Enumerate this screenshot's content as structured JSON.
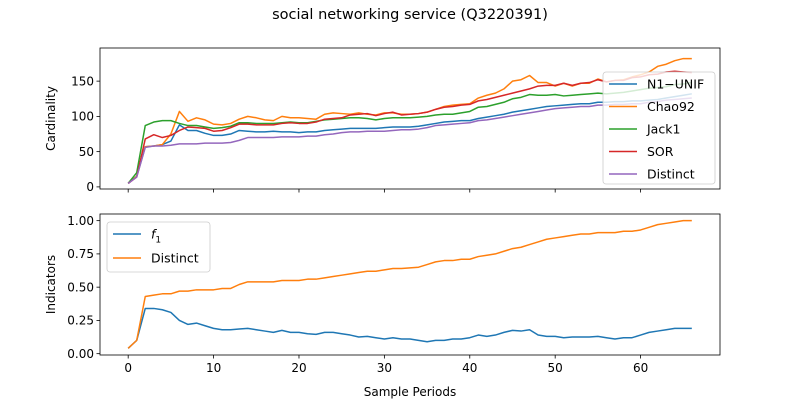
{
  "figure": {
    "title": "social networking service (Q3220391)",
    "xlabel": "Sample Periods"
  },
  "chart_data": [
    {
      "type": "line",
      "ylabel": "Cardinality",
      "xlim": [
        -3.3,
        69.3
      ],
      "ylim": [
        -3,
        197
      ],
      "xticks": [
        0,
        10,
        20,
        30,
        40,
        50,
        60
      ],
      "yticks": [
        0,
        50,
        100,
        150
      ],
      "show_xtick_labels": false,
      "grid": false,
      "legend_position": "right",
      "x": [
        0,
        1,
        2,
        3,
        4,
        5,
        6,
        7,
        8,
        9,
        10,
        11,
        12,
        13,
        14,
        15,
        16,
        17,
        18,
        19,
        20,
        21,
        22,
        23,
        24,
        25,
        26,
        27,
        28,
        29,
        30,
        31,
        32,
        33,
        34,
        35,
        36,
        37,
        38,
        39,
        40,
        41,
        42,
        43,
        44,
        45,
        46,
        47,
        48,
        49,
        50,
        51,
        52,
        53,
        54,
        55,
        56,
        57,
        58,
        59,
        60,
        61,
        62,
        63,
        64,
        65,
        66
      ],
      "series": [
        {
          "name": "N1−UNIF",
          "color": "#1f77b4",
          "values": [
            5,
            15,
            57,
            58,
            60,
            65,
            88,
            80,
            80,
            76,
            73,
            73,
            75,
            80,
            79,
            78,
            78,
            79,
            78,
            78,
            77,
            78,
            78,
            80,
            81,
            82,
            83,
            83,
            83,
            83,
            84,
            85,
            85,
            85,
            86,
            88,
            90,
            92,
            93,
            94,
            94,
            97,
            99,
            101,
            103,
            106,
            108,
            110,
            112,
            114,
            115,
            116,
            117,
            118,
            118,
            120,
            120,
            121,
            121,
            122,
            122,
            123,
            124,
            126,
            128,
            130,
            132
          ]
        },
        {
          "name": "Chao92",
          "color": "#ff7f0e",
          "values": [
            5,
            15,
            57,
            58,
            60,
            75,
            107,
            93,
            98,
            95,
            89,
            88,
            90,
            96,
            100,
            98,
            95,
            94,
            100,
            98,
            98,
            97,
            96,
            103,
            105,
            104,
            103,
            105,
            103,
            102,
            105,
            105,
            103,
            103,
            104,
            106,
            110,
            114,
            116,
            117,
            118,
            126,
            130,
            133,
            139,
            150,
            152,
            158,
            148,
            148,
            143,
            147,
            143,
            147,
            147,
            153,
            149,
            151,
            152,
            156,
            159,
            163,
            171,
            174,
            179,
            182,
            182
          ]
        },
        {
          "name": "Jack1",
          "color": "#2ca02c",
          "values": [
            5,
            20,
            87,
            92,
            94,
            94,
            90,
            87,
            87,
            85,
            83,
            84,
            86,
            91,
            91,
            90,
            90,
            90,
            91,
            92,
            91,
            91,
            93,
            95,
            96,
            97,
            98,
            98,
            97,
            95,
            97,
            98,
            98,
            98,
            99,
            100,
            102,
            103,
            103,
            105,
            107,
            113,
            114,
            117,
            120,
            125,
            127,
            131,
            130,
            130,
            131,
            129,
            130,
            131,
            132,
            133,
            132,
            133,
            134,
            136,
            138,
            140,
            141,
            142,
            145,
            146,
            148
          ]
        },
        {
          "name": "SOR",
          "color": "#d62728",
          "values": [
            5,
            14,
            68,
            74,
            70,
            73,
            80,
            85,
            84,
            83,
            79,
            80,
            84,
            89,
            89,
            88,
            88,
            88,
            90,
            91,
            90,
            90,
            92,
            96,
            97,
            98,
            102,
            103,
            104,
            101,
            104,
            106,
            102,
            103,
            104,
            106,
            110,
            113,
            114,
            116,
            117,
            122,
            124,
            127,
            130,
            133,
            136,
            139,
            143,
            144,
            144,
            147,
            144,
            147,
            148,
            152,
            149,
            151,
            151,
            155,
            156,
            159,
            160,
            163,
            164,
            163,
            162
          ]
        },
        {
          "name": "Distinct",
          "color": "#9467bd",
          "values": [
            5,
            14,
            56,
            58,
            58,
            59,
            61,
            61,
            61,
            62,
            62,
            62,
            63,
            66,
            70,
            70,
            70,
            70,
            71,
            71,
            71,
            72,
            72,
            74,
            75,
            77,
            78,
            78,
            79,
            79,
            79,
            80,
            81,
            81,
            82,
            84,
            87,
            88,
            89,
            90,
            91,
            94,
            95,
            97,
            99,
            101,
            103,
            105,
            107,
            109,
            111,
            112,
            113,
            114,
            114,
            116,
            116,
            117,
            117,
            118,
            118,
            120,
            121,
            123,
            124,
            125,
            126
          ]
        }
      ]
    },
    {
      "type": "line",
      "ylabel": "Indicators",
      "xlim": [
        -3.3,
        69.3
      ],
      "ylim": [
        -0.01,
        1.05
      ],
      "xticks": [
        0,
        10,
        20,
        30,
        40,
        50,
        60
      ],
      "yticks": [
        0.0,
        0.25,
        0.5,
        0.75,
        1.0
      ],
      "ytick_labels": [
        "0.00",
        "0.25",
        "0.50",
        "0.75",
        "1.00"
      ],
      "show_xtick_labels": true,
      "grid": false,
      "legend_position": "upper-left",
      "x": [
        0,
        1,
        2,
        3,
        4,
        5,
        6,
        7,
        8,
        9,
        10,
        11,
        12,
        13,
        14,
        15,
        16,
        17,
        18,
        19,
        20,
        21,
        22,
        23,
        24,
        25,
        26,
        27,
        28,
        29,
        30,
        31,
        32,
        33,
        34,
        35,
        36,
        37,
        38,
        39,
        40,
        41,
        42,
        43,
        44,
        45,
        46,
        47,
        48,
        49,
        50,
        51,
        52,
        53,
        54,
        55,
        56,
        57,
        58,
        59,
        60,
        61,
        62,
        63,
        64,
        65,
        66
      ],
      "series": [
        {
          "name": "f1",
          "label_main": "f",
          "label_sub": "1",
          "color": "#1f77b4",
          "values": [
            0.04,
            0.1,
            0.34,
            0.34,
            0.33,
            0.31,
            0.25,
            0.22,
            0.23,
            0.21,
            0.19,
            0.18,
            0.18,
            0.185,
            0.19,
            0.18,
            0.17,
            0.16,
            0.175,
            0.16,
            0.16,
            0.15,
            0.145,
            0.16,
            0.16,
            0.15,
            0.14,
            0.125,
            0.13,
            0.12,
            0.11,
            0.12,
            0.11,
            0.11,
            0.1,
            0.09,
            0.1,
            0.1,
            0.11,
            0.11,
            0.12,
            0.14,
            0.13,
            0.14,
            0.16,
            0.175,
            0.17,
            0.18,
            0.14,
            0.13,
            0.13,
            0.12,
            0.125,
            0.125,
            0.125,
            0.13,
            0.12,
            0.11,
            0.12,
            0.12,
            0.14,
            0.16,
            0.17,
            0.18,
            0.19,
            0.19,
            0.19
          ]
        },
        {
          "name": "Distinct",
          "color": "#ff7f0e",
          "values": [
            0.04,
            0.1,
            0.43,
            0.44,
            0.45,
            0.45,
            0.47,
            0.47,
            0.48,
            0.48,
            0.48,
            0.49,
            0.49,
            0.52,
            0.54,
            0.54,
            0.54,
            0.54,
            0.55,
            0.55,
            0.55,
            0.56,
            0.56,
            0.57,
            0.58,
            0.59,
            0.6,
            0.61,
            0.62,
            0.62,
            0.63,
            0.64,
            0.64,
            0.645,
            0.65,
            0.67,
            0.69,
            0.7,
            0.7,
            0.71,
            0.71,
            0.73,
            0.74,
            0.75,
            0.77,
            0.79,
            0.8,
            0.82,
            0.84,
            0.86,
            0.87,
            0.88,
            0.89,
            0.9,
            0.9,
            0.91,
            0.91,
            0.91,
            0.92,
            0.92,
            0.93,
            0.95,
            0.97,
            0.98,
            0.99,
            1.0,
            1.0
          ]
        }
      ]
    }
  ]
}
